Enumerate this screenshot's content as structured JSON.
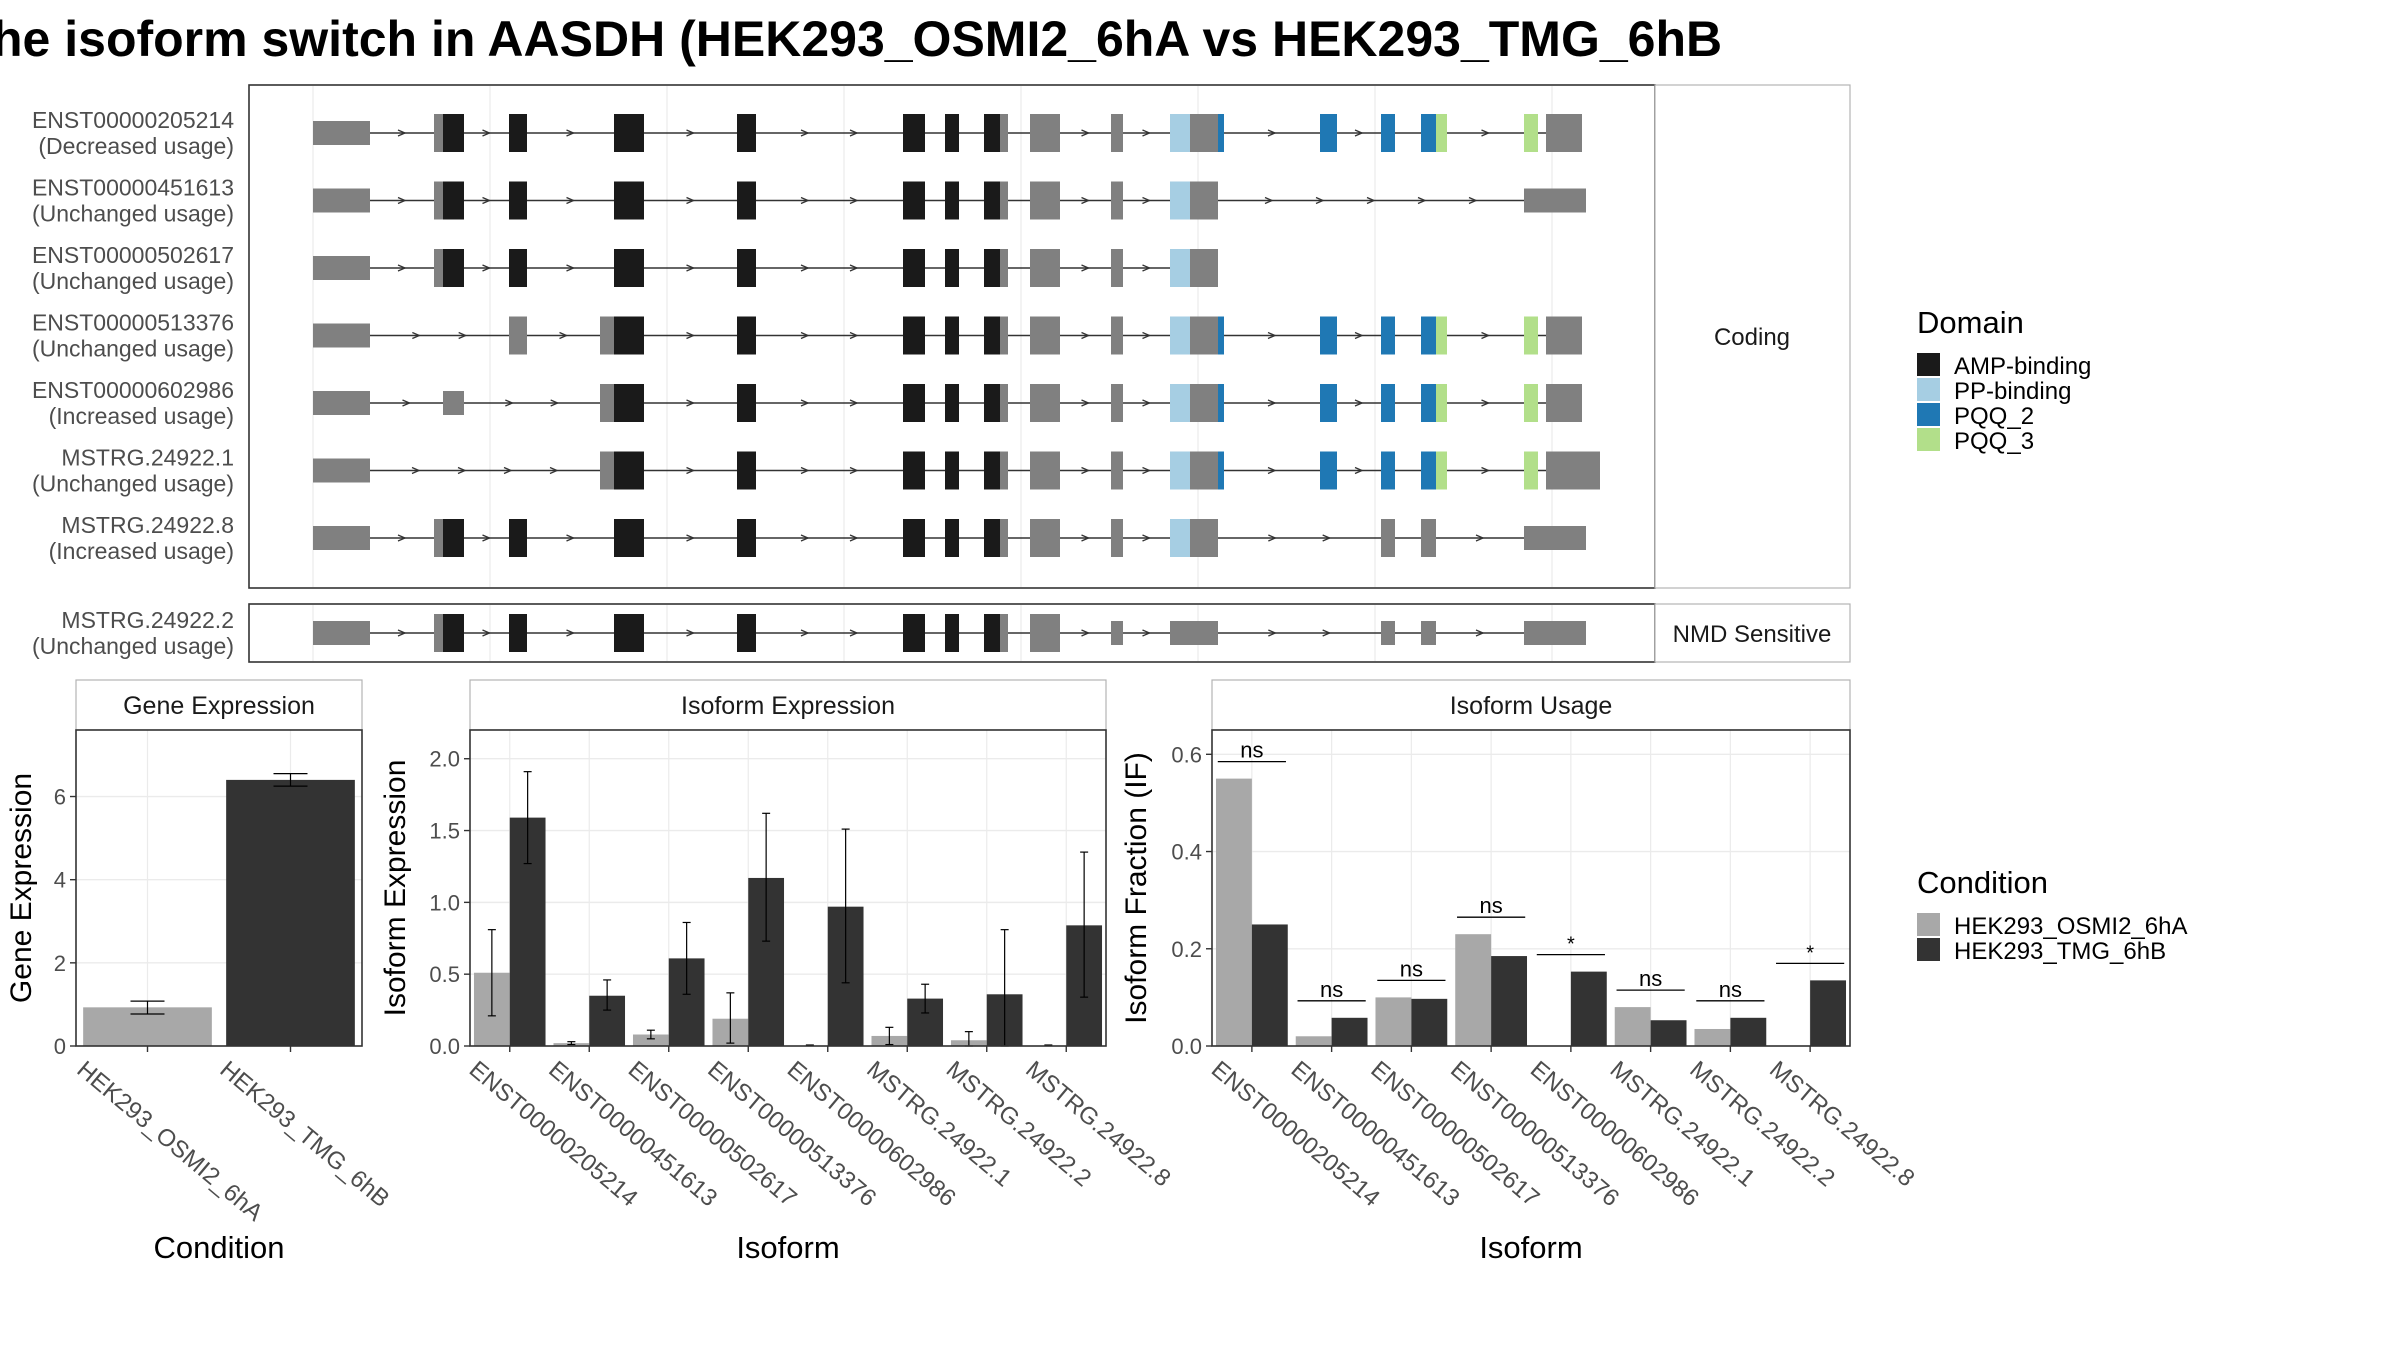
{
  "title": "he isoform switch in AASDH (HEK293_OSMI2_6hA vs HEK293_TMG_6hB",
  "colors": {
    "cond1": "#a8a8a8",
    "cond2": "#333333",
    "AMP-binding": "#1a1a1a",
    "PP-binding": "#a6cee3",
    "PQQ_2": "#1f78b4",
    "PQQ_3": "#b2df8a",
    "exon": "#808080",
    "panel_border": "#333333",
    "strip_border": "#b3b3b3",
    "grid": "#ebebeb"
  },
  "structure": {
    "facet_coding": "Coding",
    "facet_nmd": "NMD Sensitive",
    "legend_domain": {
      "title": "Domain",
      "entries": [
        {
          "key": "AMP-binding",
          "label": "AMP-binding"
        },
        {
          "key": "PP-binding",
          "label": "PP-binding"
        },
        {
          "key": "PQQ_2",
          "label": "PQQ_2"
        },
        {
          "key": "PQQ_3",
          "label": "PQQ_3"
        }
      ]
    },
    "coding_rows": [
      {
        "id": "ENST00000205214",
        "usage": "(Decreased usage)",
        "model": "full_cds",
        "terminal": "wide"
      },
      {
        "id": "ENST00000451613",
        "usage": "(Unchanged usage)",
        "model": "short_cds",
        "terminal": "utr_tail"
      },
      {
        "id": "ENST00000502617",
        "usage": "(Unchanged usage)",
        "model": "truncated",
        "terminal": "none"
      },
      {
        "id": "ENST00000513376",
        "usage": "(Unchanged usage)",
        "model": "alt_start_a",
        "terminal": "wide"
      },
      {
        "id": "ENST00000602986",
        "usage": "(Increased usage)",
        "model": "alt_start_b",
        "terminal": "wide"
      },
      {
        "id": "MSTRG.24922.1",
        "usage": "(Unchanged usage)",
        "model": "alt_start_c",
        "terminal": "long"
      },
      {
        "id": "MSTRG.24922.8",
        "usage": "(Increased usage)",
        "model": "no_pqq",
        "terminal": "utr_tail"
      }
    ],
    "nmd_rows": [
      {
        "id": "MSTRG.24922.2",
        "usage": "(Unchanged usage)",
        "model": "nmd",
        "terminal": "utr"
      }
    ]
  },
  "chart_data": [
    {
      "type": "bar",
      "facet": "Gene Expression",
      "xlabel": "Condition",
      "ylabel": "Gene Expression",
      "categories": [
        "HEK293_OSMI2_6hA",
        "HEK293_TMG_6hB"
      ],
      "values": [
        0.93,
        6.4
      ],
      "errors": [
        [
          0.77,
          1.08
        ],
        [
          6.25,
          6.55
        ]
      ],
      "ylim": [
        0,
        7.6
      ],
      "yticks": [
        0,
        2,
        4,
        6
      ]
    },
    {
      "type": "bar",
      "facet": "Isoform Expression",
      "xlabel": "Isoform",
      "ylabel": "Isoform Expression",
      "categories": [
        "ENST00000205214",
        "ENST00000451613",
        "ENST00000502617",
        "ENST00000513376",
        "ENST00000602986",
        "MSTRG.24922.1",
        "MSTRG.24922.2",
        "MSTRG.24922.8"
      ],
      "series": [
        {
          "name": "HEK293_OSMI2_6hA",
          "values": [
            0.51,
            0.02,
            0.08,
            0.19,
            0.0,
            0.07,
            0.04,
            0.0
          ],
          "errors": [
            [
              0.21,
              0.81
            ],
            [
              0.01,
              0.03
            ],
            [
              0.05,
              0.11
            ],
            [
              0.02,
              0.37
            ],
            [
              0.0,
              0.0
            ],
            [
              0.01,
              0.13
            ],
            [
              0.0,
              0.1
            ],
            [
              0.0,
              0.0
            ]
          ]
        },
        {
          "name": "HEK293_TMG_6hB",
          "values": [
            1.59,
            0.35,
            0.61,
            1.17,
            0.97,
            0.33,
            0.36,
            0.84
          ],
          "errors": [
            [
              1.27,
              1.91
            ],
            [
              0.25,
              0.46
            ],
            [
              0.36,
              0.86
            ],
            [
              0.73,
              1.62
            ],
            [
              0.44,
              1.51
            ],
            [
              0.23,
              0.43
            ],
            [
              0.0,
              0.81
            ],
            [
              0.34,
              1.35
            ]
          ]
        }
      ],
      "ylim": [
        0,
        2.2
      ],
      "yticks": [
        "0.0",
        "0.5",
        "1.0",
        "1.5",
        "2.0"
      ]
    },
    {
      "type": "bar",
      "facet": "Isoform Usage",
      "xlabel": "Isoform",
      "ylabel": "Isoform Fraction (IF)",
      "categories": [
        "ENST00000205214",
        "ENST00000451613",
        "ENST00000502617",
        "ENST00000513376",
        "ENST00000602986",
        "MSTRG.24922.1",
        "MSTRG.24922.2",
        "MSTRG.24922.8"
      ],
      "series": [
        {
          "name": "HEK293_OSMI2_6hA",
          "values": [
            0.55,
            0.02,
            0.1,
            0.23,
            0.0,
            0.08,
            0.035,
            0.0
          ]
        },
        {
          "name": "HEK293_TMG_6hB",
          "values": [
            0.25,
            0.058,
            0.097,
            0.185,
            0.153,
            0.053,
            0.058,
            0.135
          ]
        }
      ],
      "significance": [
        "ns",
        "ns",
        "ns",
        "ns",
        "*",
        "ns",
        "ns",
        "*"
      ],
      "ylim": [
        0,
        0.65
      ],
      "yticks": [
        "0.0",
        "0.2",
        "0.4",
        "0.6"
      ]
    }
  ],
  "legend_condition": {
    "title": "Condition",
    "entries": [
      "HEK293_OSMI2_6hA",
      "HEK293_TMG_6hB"
    ]
  }
}
